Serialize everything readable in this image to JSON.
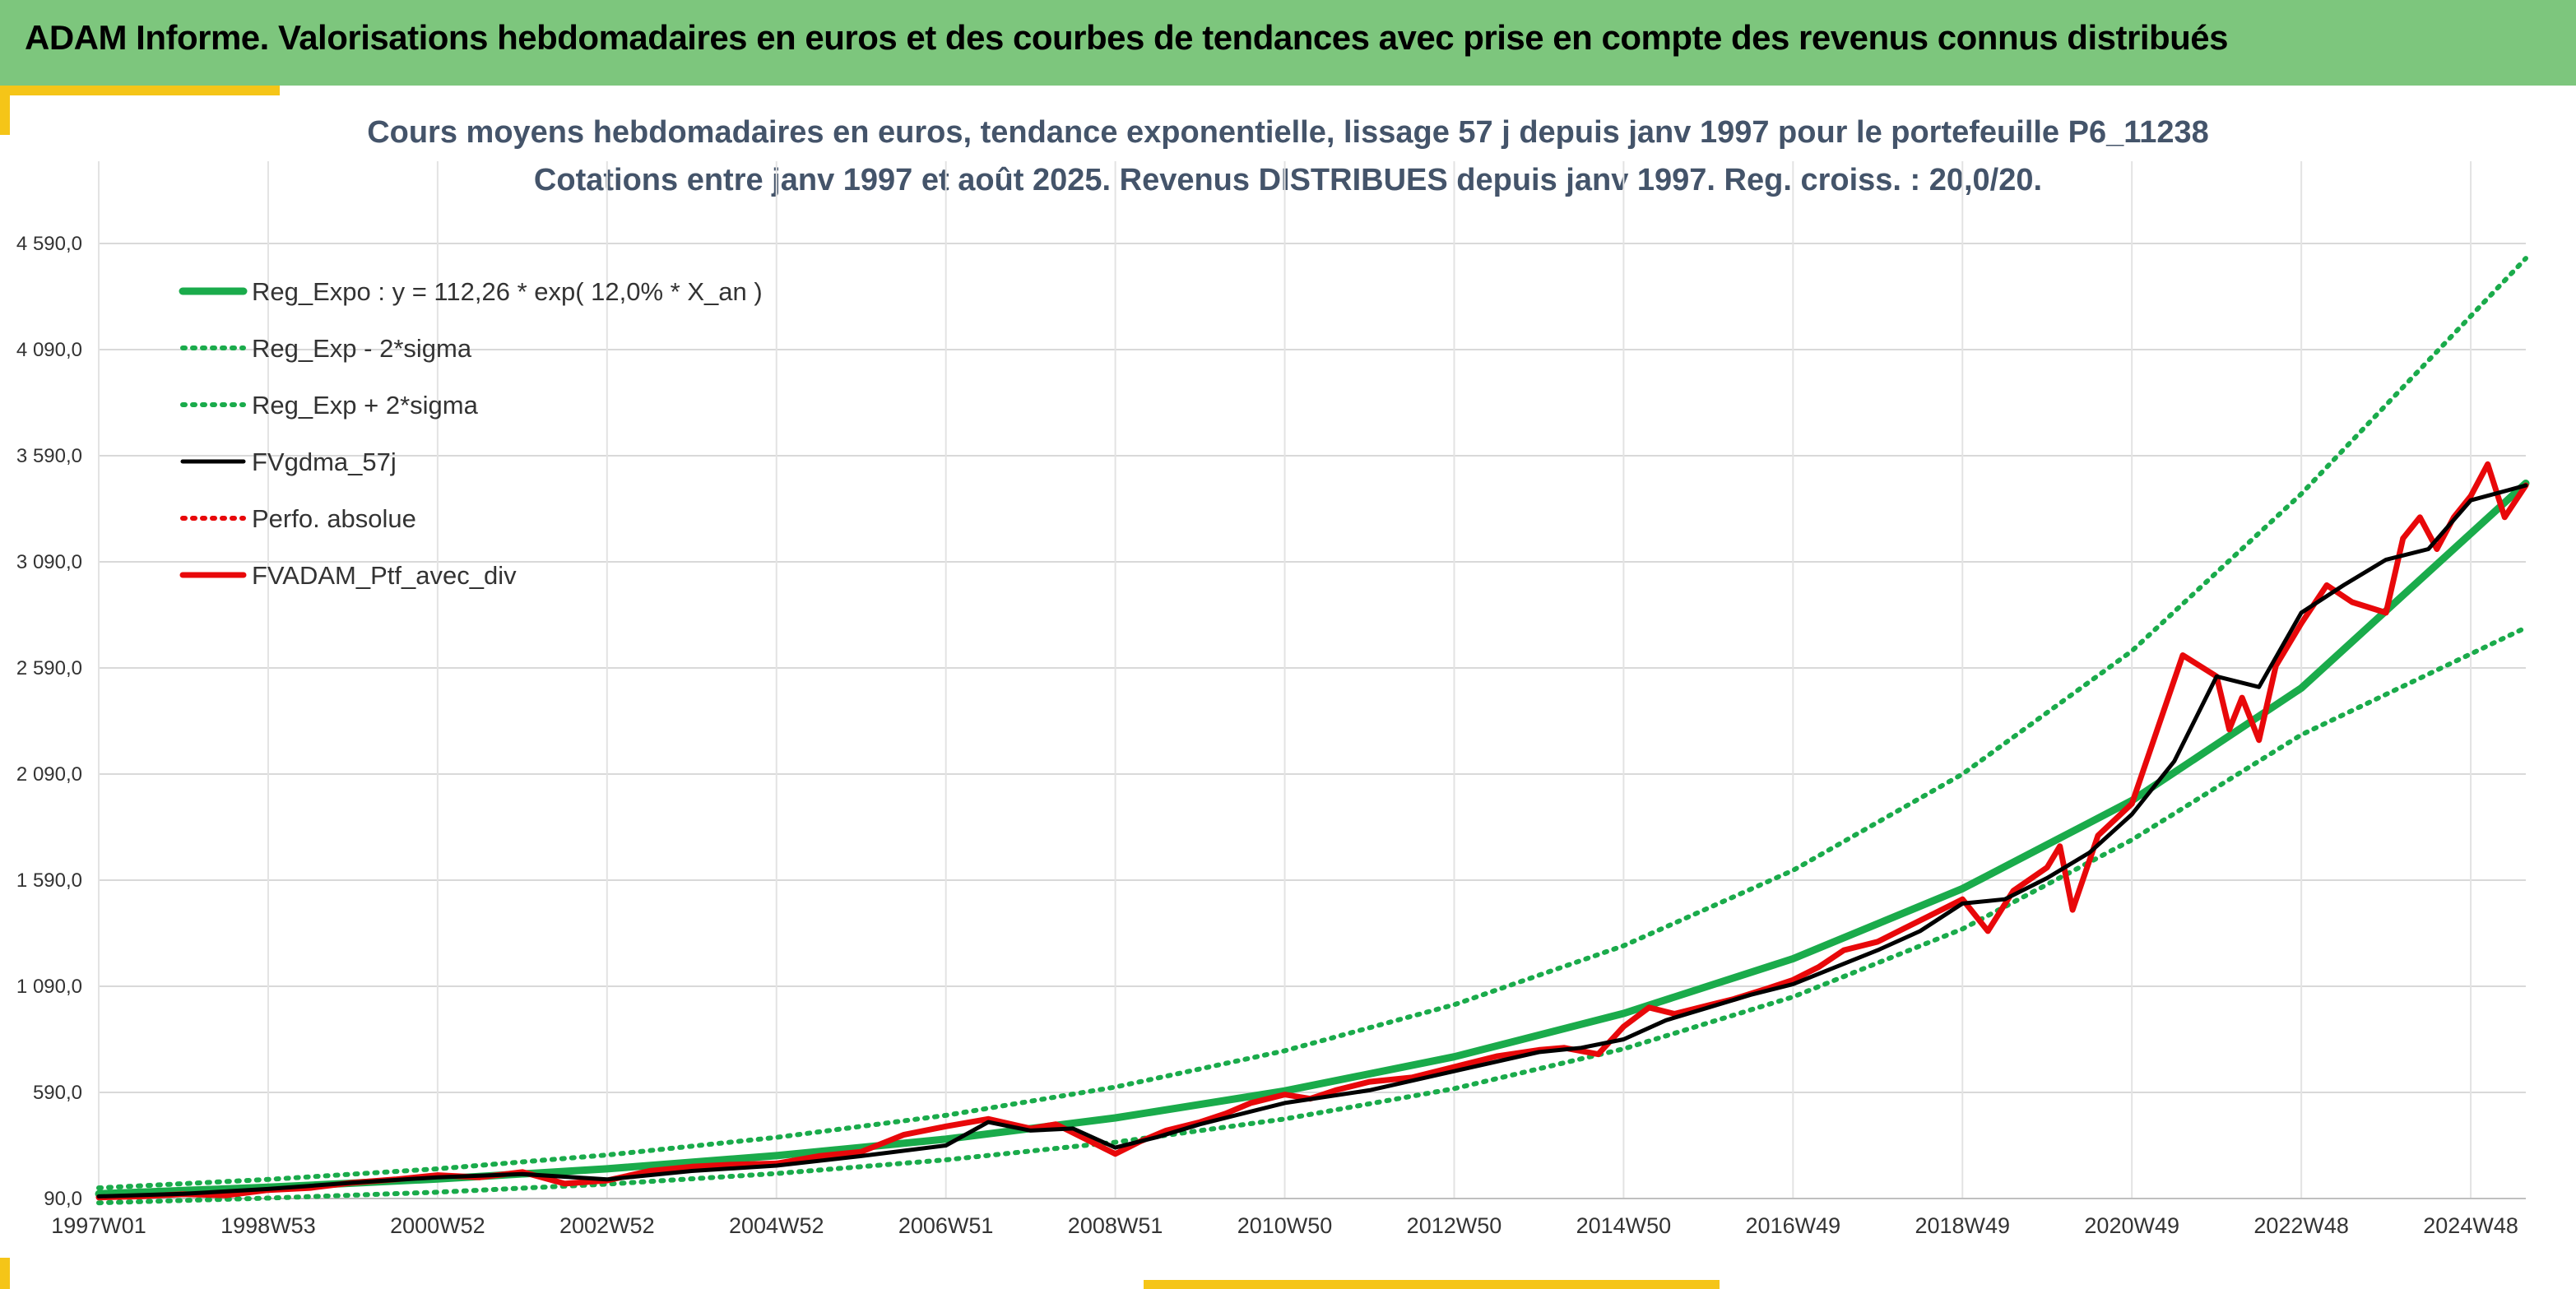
{
  "banner": {
    "title": "ADAM Informe. Valorisations hebdomadaires en euros et des courbes de tendances avec prise en compte des revenus connus distribués"
  },
  "colors": {
    "banner": "#7dc67d",
    "accent": "#f5c518",
    "title_text": "#44546a",
    "trend": "#1aab4b",
    "smooth": "#000000",
    "portfolio": "#e8080a"
  },
  "chart_data": {
    "type": "line",
    "title": "Cours moyens hebdomadaires en euros, tendance exponentielle, lissage 57 j depuis janv 1997 pour le portefeuille P6_11238",
    "subtitle": "Cotations entre janv 1997 et août 2025. Revenus DISTRIBUES depuis janv 1997. Reg. croiss. : 20,0/20.",
    "xlabel": "",
    "ylabel": "",
    "x_tick_labels": [
      "1997W01",
      "1998W53",
      "2000W52",
      "2002W52",
      "2004W52",
      "2006W51",
      "2008W51",
      "2010W50",
      "2012W50",
      "2014W50",
      "2016W49",
      "2018W49",
      "2020W49",
      "2022W48",
      "2024W48"
    ],
    "x_tick_years": [
      1997.0,
      1999.0,
      2001.0,
      2003.0,
      2005.0,
      2007.0,
      2009.0,
      2011.0,
      2013.0,
      2015.0,
      2017.0,
      2019.0,
      2021.0,
      2023.0,
      2025.0
    ],
    "xlim": [
      1997.0,
      2025.65
    ],
    "y_tick_labels": [
      "90,0",
      "590,0",
      "1 090,0",
      "1 590,0",
      "2 090,0",
      "2 590,0",
      "3 090,0",
      "3 590,0",
      "4 090,0",
      "4 590,0"
    ],
    "y_ticks": [
      90,
      590,
      1090,
      1590,
      2090,
      2590,
      3090,
      3590,
      4090,
      4590
    ],
    "ylim": [
      90,
      4590
    ],
    "grid": true,
    "legend_position": "top-left",
    "series": [
      {
        "name": "Reg_Expo : y = 112,26 * exp( 12,0% *  X_an )",
        "style": "solid",
        "color": "#1aab4b",
        "x": [
          1997,
          1999,
          2001,
          2003,
          2005,
          2007,
          2009,
          2011,
          2013,
          2015,
          2017,
          2019,
          2021,
          2023,
          2025.65
        ],
        "values": [
          112,
          143,
          182,
          230,
          292,
          370,
          470,
          597,
          758,
          962,
          1220,
          1550,
          1965,
          2495,
          3460
        ]
      },
      {
        "name": "Reg_Exp - 2*sigma",
        "style": "dotted",
        "color": "#1aab4b",
        "x": [
          1997,
          1999,
          2001,
          2003,
          2005,
          2007,
          2009,
          2011,
          2013,
          2015,
          2017,
          2019,
          2021,
          2023,
          2025.65
        ],
        "values": [
          70,
          92,
          120,
          158,
          208,
          272,
          355,
          465,
          608,
          795,
          1040,
          1360,
          1780,
          2275,
          2780
        ]
      },
      {
        "name": "Reg_Exp + 2*sigma",
        "style": "dotted",
        "color": "#1aab4b",
        "x": [
          1997,
          1999,
          2001,
          2003,
          2005,
          2007,
          2009,
          2011,
          2013,
          2015,
          2017,
          2019,
          2021,
          2023,
          2025.65
        ],
        "values": [
          140,
          180,
          230,
          295,
          378,
          482,
          615,
          786,
          1003,
          1281,
          1636,
          2090,
          2670,
          3410,
          4520
        ]
      },
      {
        "name": "FVgdma_57j",
        "style": "solid",
        "color": "#000000",
        "x": [
          1997,
          1998,
          1999,
          2000,
          2001,
          2002,
          2003,
          2004,
          2005,
          2006,
          2007,
          2007.5,
          2008,
          2008.5,
          2009,
          2009.5,
          2010,
          2011,
          2012,
          2013,
          2014,
          2014.5,
          2015,
          2015.5,
          2016,
          2016.5,
          2017,
          2018,
          2018.5,
          2019,
          2019.5,
          2020,
          2020.5,
          2021,
          2021.5,
          2022,
          2022.5,
          2023,
          2023.5,
          2024,
          2024.5,
          2025,
          2025.65
        ],
        "values": [
          100,
          112,
          135,
          165,
          190,
          205,
          180,
          220,
          245,
          290,
          340,
          450,
          410,
          420,
          330,
          380,
          440,
          540,
          600,
          690,
          780,
          800,
          840,
          930,
          990,
          1050,
          1100,
          1260,
          1350,
          1480,
          1500,
          1600,
          1720,
          1900,
          2150,
          2550,
          2500,
          2850,
          2980,
          3100,
          3150,
          3380,
          3450
        ]
      },
      {
        "name": "Perfo. absolue",
        "style": "dotted",
        "color": "#e8080a",
        "x": [],
        "values": []
      },
      {
        "name": "FVADAM_Ptf_avec_div",
        "style": "solid",
        "color": "#e8080a",
        "x": [
          1997,
          1997.5,
          1998,
          1998.5,
          1999,
          1999.5,
          2000,
          2000.5,
          2001,
          2001.5,
          2002,
          2002.5,
          2003,
          2003.5,
          2004,
          2004.5,
          2005,
          2005.5,
          2006,
          2006.5,
          2007,
          2007.5,
          2008,
          2008.3,
          2008.7,
          2009,
          2009.3,
          2009.6,
          2010,
          2010.3,
          2010.6,
          2011,
          2011.3,
          2011.6,
          2012,
          2012.5,
          2013,
          2013.5,
          2014,
          2014.3,
          2014.7,
          2015,
          2015.3,
          2015.6,
          2016,
          2016.3,
          2016.7,
          2017,
          2017.3,
          2017.6,
          2018,
          2018.3,
          2018.6,
          2019,
          2019.3,
          2019.6,
          2020,
          2020.15,
          2020.3,
          2020.6,
          2021,
          2021.3,
          2021.6,
          2022,
          2022.15,
          2022.3,
          2022.5,
          2022.7,
          2023,
          2023.3,
          2023.6,
          2024,
          2024.2,
          2024.4,
          2024.6,
          2024.8,
          2025,
          2025.2,
          2025.4,
          2025.65
        ],
        "values": [
          95,
          100,
          110,
          105,
          130,
          140,
          165,
          180,
          200,
          190,
          215,
          160,
          175,
          220,
          240,
          250,
          255,
          290,
          310,
          390,
          430,
          465,
          420,
          440,
          360,
          300,
          360,
          410,
          450,
          490,
          540,
          580,
          560,
          600,
          640,
          660,
          710,
          760,
          790,
          800,
          770,
          900,
          990,
          960,
          1000,
          1030,
          1080,
          1120,
          1180,
          1260,
          1300,
          1360,
          1420,
          1500,
          1350,
          1540,
          1650,
          1750,
          1450,
          1800,
          1950,
          2300,
          2650,
          2550,
          2300,
          2450,
          2250,
          2600,
          2800,
          2980,
          2900,
          2850,
          3200,
          3300,
          3150,
          3300,
          3400,
          3550,
          3300,
          3450
        ]
      }
    ]
  }
}
